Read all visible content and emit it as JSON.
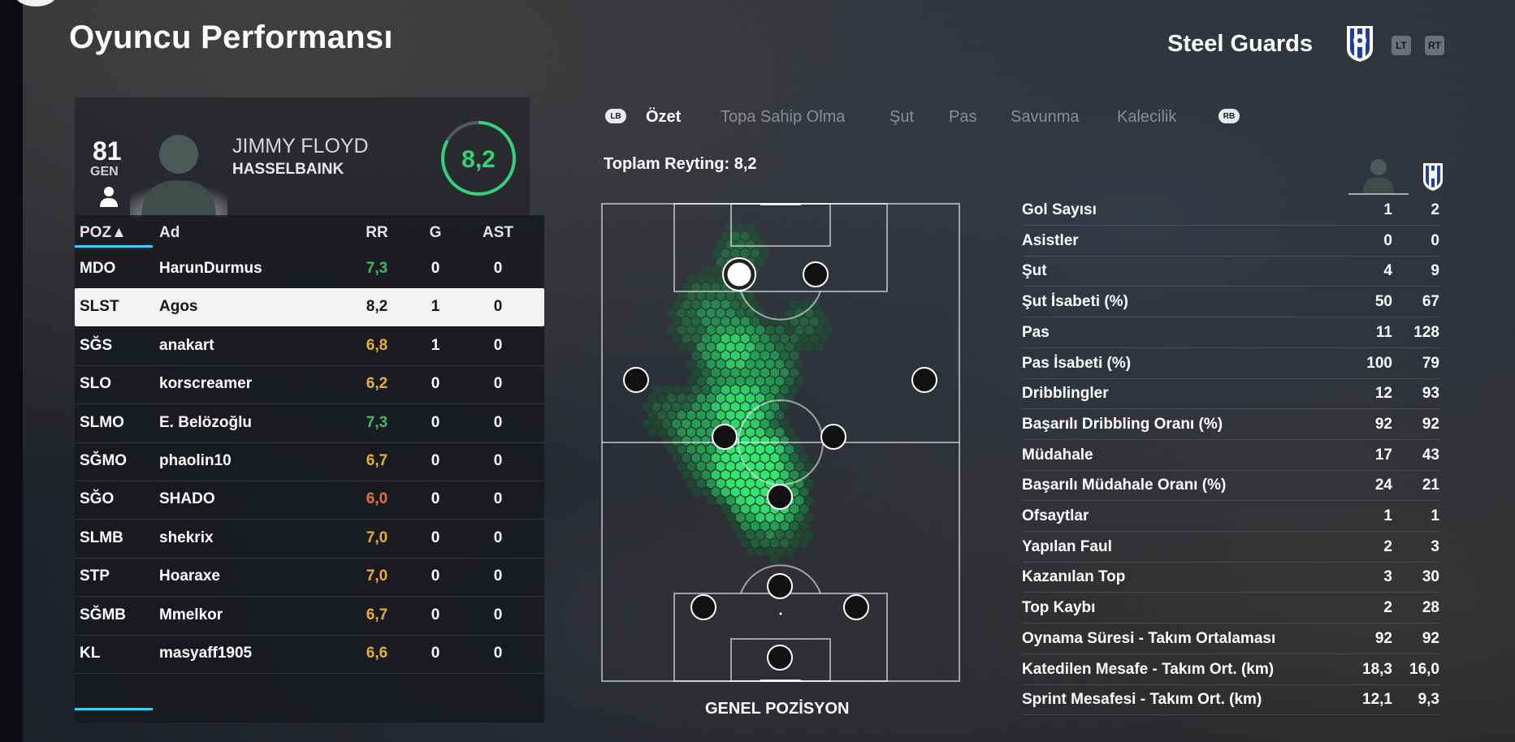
{
  "header": {
    "title": "Oyuncu Performansı",
    "team_name": "Steel Guards",
    "lt_label": "LT",
    "rt_label": "RT"
  },
  "player": {
    "overall": "81",
    "overall_label": "GEN",
    "first_name": "JIMMY FLOYD",
    "last_name": "HASSELBAINK",
    "match_rating": "8,2"
  },
  "table": {
    "headers": {
      "poz": "POZ▲",
      "name": "Ad",
      "rr": "RR",
      "g": "G",
      "ast": "AST"
    },
    "rows": [
      {
        "poz": "MDO",
        "name": "HarunDurmus",
        "rr": "7,3",
        "g": "0",
        "ast": "0",
        "rr_color": "#3fbf55"
      },
      {
        "poz": "SLST",
        "name": "Agos",
        "rr": "8,2",
        "g": "1",
        "ast": "0",
        "rr_color": "#15161a"
      },
      {
        "poz": "SĞS",
        "name": "anakart",
        "rr": "6,8",
        "g": "1",
        "ast": "0",
        "rr_color": "#e8b12c"
      },
      {
        "poz": "SLO",
        "name": "korscreamer",
        "rr": "6,2",
        "g": "0",
        "ast": "0",
        "rr_color": "#e8b12c"
      },
      {
        "poz": "SLMO",
        "name": "E. Belözoğlu",
        "rr": "7,3",
        "g": "0",
        "ast": "0",
        "rr_color": "#3fbf55"
      },
      {
        "poz": "SĞMO",
        "name": "phaolin10",
        "rr": "6,7",
        "g": "0",
        "ast": "0",
        "rr_color": "#e8b12c"
      },
      {
        "poz": "SĞO",
        "name": "SHADO",
        "rr": "6,0",
        "g": "0",
        "ast": "0",
        "rr_color": "#e8742c"
      },
      {
        "poz": "SLMB",
        "name": "shekrix",
        "rr": "7,0",
        "g": "0",
        "ast": "0",
        "rr_color": "#e8b12c"
      },
      {
        "poz": "STP",
        "name": "Hoaraxe",
        "rr": "7,0",
        "g": "0",
        "ast": "0",
        "rr_color": "#e8b12c"
      },
      {
        "poz": "SĞMB",
        "name": "Mmelkor",
        "rr": "6,7",
        "g": "0",
        "ast": "0",
        "rr_color": "#e8b12c"
      },
      {
        "poz": "KL",
        "name": "masyaff1905",
        "rr": "6,6",
        "g": "0",
        "ast": "0",
        "rr_color": "#e8b12c"
      }
    ],
    "selected_index": 1
  },
  "tabs": {
    "lb_label": "LB",
    "rb_label": "RB",
    "items": [
      "Özet",
      "Topa Sahip Olma",
      "Şut",
      "Pas",
      "Savunma",
      "Kalecilik"
    ],
    "active": 0
  },
  "summary": {
    "total_rating": "Toplam Reyting: 8,2",
    "pitch_label": "GENEL POZİSYON"
  },
  "stats": [
    {
      "label": "Gol Sayısı",
      "player": "1",
      "team": "2"
    },
    {
      "label": "Asistler",
      "player": "0",
      "team": "0"
    },
    {
      "label": "Şut",
      "player": "4",
      "team": "9"
    },
    {
      "label": "Şut İsabeti (%)",
      "player": "50",
      "team": "67"
    },
    {
      "label": "Pas",
      "player": "11",
      "team": "128"
    },
    {
      "label": "Pas İsabeti (%)",
      "player": "100",
      "team": "79"
    },
    {
      "label": "Dribblingler",
      "player": "12",
      "team": "93"
    },
    {
      "label": "Başarılı Dribbling Oranı (%)",
      "player": "92",
      "team": "92"
    },
    {
      "label": "Müdahale",
      "player": "17",
      "team": "43"
    },
    {
      "label": "Başarılı Müdahale Oranı (%)",
      "player": "24",
      "team": "21"
    },
    {
      "label": "Ofsaytlar",
      "player": "1",
      "team": "1"
    },
    {
      "label": "Yapılan Faul",
      "player": "2",
      "team": "3"
    },
    {
      "label": "Kazanılan Top",
      "player": "3",
      "team": "30"
    },
    {
      "label": "Top Kaybı",
      "player": "2",
      "team": "28"
    },
    {
      "label": "Oynama Süresi - Takım Ortalaması",
      "player": "92",
      "team": "92"
    },
    {
      "label": "Katedilen Mesafe - Takım Ort. (km)",
      "player": "18,3",
      "team": "16,0"
    },
    {
      "label": "Sprint Mesafesi - Takım Ort. (km)",
      "player": "12,1",
      "team": "9,3"
    }
  ],
  "colors": {
    "accent": "#3ad1ff",
    "rating_ring": "#2fd37a",
    "heat": "#27e06a"
  },
  "icons": {
    "lb": "lb-button-icon",
    "rb": "rb-button-icon",
    "crest": "team-crest-icon"
  }
}
